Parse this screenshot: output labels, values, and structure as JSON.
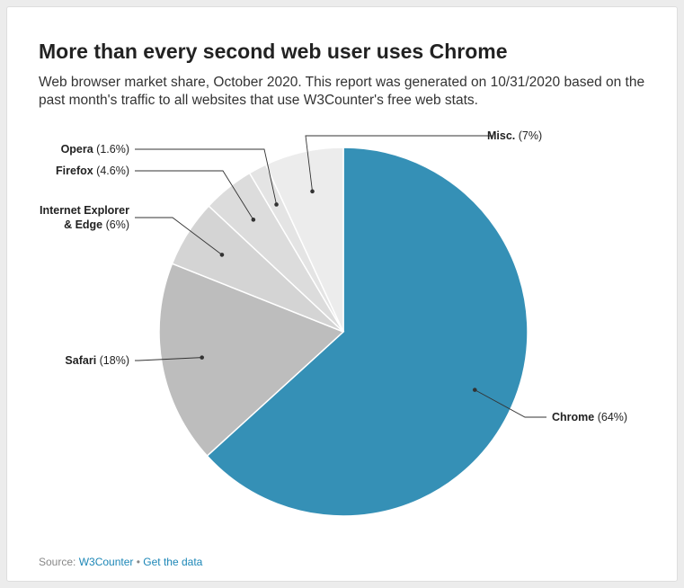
{
  "title": "More than every second web user uses Chrome",
  "subtitle": "Web browser market share, October 2020. This report was generated on 10/31/2020 based on the past month's traffic to all websites that use W3Counter's free web stats.",
  "footer": {
    "source_label": "Source: ",
    "source_link": "W3Counter",
    "separator": " • ",
    "data_link": "Get the data"
  },
  "colors": {
    "chrome": "#3590b6",
    "safari": "#bdbdbd",
    "ie_edge": "#d4d4d4",
    "firefox": "#dcdcdc",
    "opera": "#e4e4e4",
    "misc": "#ececec"
  },
  "chart_data": {
    "type": "pie",
    "title": "More than every second web user uses Chrome",
    "slices": [
      {
        "label": "Chrome",
        "value": 64,
        "value_label": "(64%)",
        "color": "#3590b6"
      },
      {
        "label": "Safari",
        "value": 18,
        "value_label": "(18%)",
        "color": "#bdbdbd"
      },
      {
        "label": "Internet Explorer & Edge",
        "label_lines": [
          "Internet Explorer",
          "& Edge"
        ],
        "value": 6,
        "value_label": "(6%)",
        "color": "#d4d4d4"
      },
      {
        "label": "Firefox",
        "value": 4.6,
        "value_label": "(4.6%)",
        "color": "#dcdcdc"
      },
      {
        "label": "Opera",
        "value": 1.6,
        "value_label": "(1.6%)",
        "color": "#e4e4e4"
      },
      {
        "label": "Misc.",
        "value": 7,
        "value_label": "(7%)",
        "color": "#ececec"
      }
    ],
    "start": "top",
    "direction": "clockwise"
  }
}
